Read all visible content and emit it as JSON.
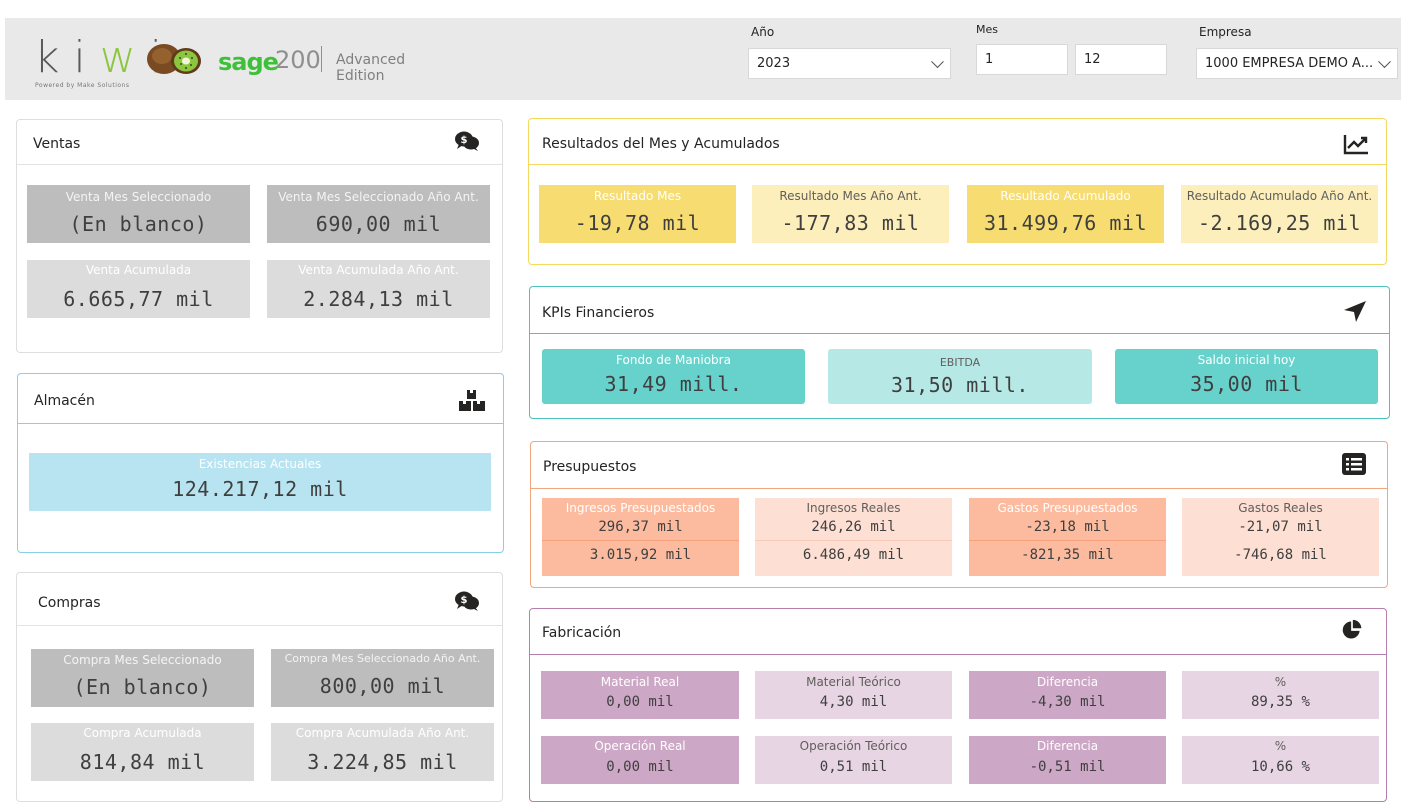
{
  "header": {
    "logo_text": "kiwi",
    "logo_sub": "Powered by Make Solutions",
    "sage": "sage",
    "sage_version": "200",
    "sage_edition": "Advanced Edition"
  },
  "filters": {
    "year_label": "Año",
    "year_value": "2023",
    "month_label": "Mes",
    "month_from": "1",
    "month_to": "12",
    "company_label": "Empresa",
    "company_value": "1000 EMPRESA DEMO A..."
  },
  "ventas": {
    "title": "Ventas",
    "tiles": [
      {
        "label": "Venta Mes Seleccionado",
        "value": "(En blanco)"
      },
      {
        "label": "Venta Mes Seleccionado Año Ant.",
        "value": "690,00 mil"
      },
      {
        "label": "Venta Acumulada",
        "value": "6.665,77 mil"
      },
      {
        "label": "Venta Acumulada Año Ant.",
        "value": "2.284,13 mil"
      }
    ]
  },
  "almacen": {
    "title": "Almacén",
    "tile": {
      "label": "Existencias Actuales",
      "value": "124.217,12 mil"
    }
  },
  "compras": {
    "title": "Compras",
    "tiles": [
      {
        "label": "Compra Mes Seleccionado",
        "value": "(En blanco)"
      },
      {
        "label": "Compra Mes Seleccionado Año Ant.",
        "value": "800,00 mil"
      },
      {
        "label": "Compra Acumulada",
        "value": "814,84 mil"
      },
      {
        "label": "Compra Acumulada Año Ant.",
        "value": "3.224,85 mil"
      }
    ]
  },
  "resultados": {
    "title": "Resultados del Mes y Acumulados",
    "tiles": [
      {
        "label": "Resultado Mes",
        "value": "-19,78 mil"
      },
      {
        "label": "Resultado Mes Año Ant.",
        "value": "-177,83 mil"
      },
      {
        "label": "Resultado Acumulado",
        "value": "31.499,76 mil"
      },
      {
        "label": "Resultado Acumulado Año Ant.",
        "value": "-2.169,25 mil"
      }
    ]
  },
  "kpis": {
    "title": "KPIs Financieros",
    "tiles": [
      {
        "label": "Fondo de Maniobra",
        "value": "31,49 mill."
      },
      {
        "label": "EBITDA",
        "value": "31,50 mill."
      },
      {
        "label": "Saldo inicial hoy",
        "value": "35,00 mil"
      }
    ]
  },
  "presupuestos": {
    "title": "Presupuestos",
    "tiles": [
      {
        "label": "Ingresos Presupuestados",
        "month": "296,37 mil",
        "acc": "3.015,92 mil"
      },
      {
        "label": "Ingresos Reales",
        "month": "246,26 mil",
        "acc": "6.486,49 mil"
      },
      {
        "label": "Gastos Presupuestados",
        "month": "-23,18 mil",
        "acc": "-821,35 mil"
      },
      {
        "label": "Gastos Reales",
        "month": "-21,07 mil",
        "acc": "-746,68 mil"
      }
    ]
  },
  "fabricacion": {
    "title": "Fabricación",
    "row1": [
      {
        "label": "Material Real",
        "value": "0,00 mil"
      },
      {
        "label": "Material Teórico",
        "value": "4,30 mil"
      },
      {
        "label": "Diferencia",
        "value": "-4,30 mil"
      },
      {
        "label": "%",
        "value": "89,35 %"
      }
    ],
    "row2": [
      {
        "label": "Operación Real",
        "value": "0,00 mil"
      },
      {
        "label": "Operación Teórico",
        "value": "0,51 mil"
      },
      {
        "label": "Diferencia",
        "value": "-0,51 mil"
      },
      {
        "label": "%",
        "value": "10,66 %"
      }
    ]
  },
  "icons": {
    "ventas": "money-chat-icon",
    "almacen": "boxes-icon",
    "compras": "money-chat-icon",
    "resultados": "line-chart-icon",
    "kpis": "navigation-arrow-icon",
    "presupuestos": "list-icon",
    "fabricacion": "pie-chart-icon"
  },
  "colors": {
    "ventas_dark": "#bdbdbd",
    "ventas_light": "#dcdcdc",
    "almacen_border": "#89cfe6",
    "almacen_tile": "#b8e3f0",
    "resultados_border": "#f4d95e",
    "resultados_dark": "#f6dc71",
    "resultados_light": "#fcefbb",
    "kpis_border": "#4ec2bc",
    "kpis_dark": "#67d2cb",
    "kpis_light": "#b6e9e5",
    "presupuestos_border": "#f1a77e",
    "presupuestos_dark": "#fcbb9e",
    "presupuestos_light": "#fedfd3",
    "fabricacion_border": "#b57eae",
    "fabricacion_dark": "#cda7c6",
    "fabricacion_light": "#e7d5e3"
  }
}
